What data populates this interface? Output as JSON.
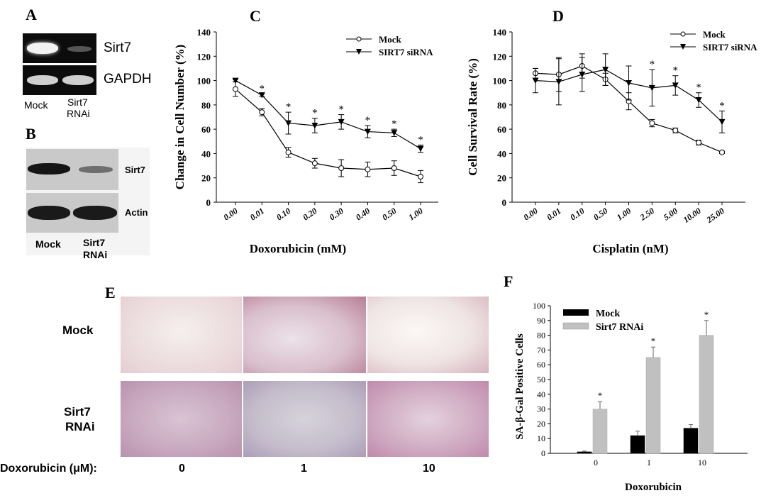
{
  "panels": {
    "a": {
      "letter": "A",
      "labels": [
        "Sirt7",
        "GAPDH"
      ],
      "lanes": [
        "Mock",
        "Sirt7",
        "RNAi"
      ]
    },
    "b": {
      "letter": "B",
      "labels": [
        "Sirt7",
        "Actin"
      ],
      "lanes": [
        "Mock",
        "Sirt7",
        "RNAi"
      ]
    },
    "e": {
      "letter": "E",
      "rows": [
        "Mock",
        "Sirt7",
        "RNAi"
      ],
      "xaxis_label": "Doxorubicin  (μM):",
      "cols": [
        "0",
        "1",
        "10"
      ]
    }
  },
  "chart_data": [
    {
      "id": "C",
      "type": "line",
      "letter": "C",
      "xlabel": "Doxorubicin (mM)",
      "ylabel": "Change in Cell Number (%)",
      "categories": [
        "0.00",
        "0.01",
        "0.10",
        "0.20",
        "0.30",
        "0.40",
        "0.50",
        "1.00"
      ],
      "ylim": [
        0,
        140
      ],
      "yticks": [
        "0",
        "20",
        "40",
        "60",
        "80",
        "100",
        "120",
        "140"
      ],
      "legend_position": "top-right",
      "series": [
        {
          "name": "Mock",
          "marker": "open-circle",
          "values": [
            93,
            74,
            41,
            32,
            28,
            27,
            28,
            21
          ],
          "errors": [
            6,
            3,
            4,
            4,
            7,
            6,
            6,
            5
          ]
        },
        {
          "name": "SIRT7 siRNA",
          "marker": "filled-triangle",
          "values": [
            100,
            88,
            65,
            63,
            66,
            58,
            57,
            44
          ],
          "errors": [
            1,
            1,
            9,
            6,
            6,
            5,
            3,
            3
          ]
        }
      ],
      "annotations": [
        "*",
        "*",
        "*",
        "*",
        "*",
        "*",
        "*"
      ],
      "annotation_index": [
        1,
        2,
        3,
        4,
        5,
        6,
        7
      ]
    },
    {
      "id": "D",
      "type": "line",
      "letter": "D",
      "xlabel": "Cisplatin (nM)",
      "ylabel": "Cell Survival Rate (%)",
      "categories": [
        "0.00",
        "0.01",
        "0.10",
        "0.50",
        "1.00",
        "2.50",
        "5.00",
        "10.00",
        "25.00"
      ],
      "ylim": [
        0,
        140
      ],
      "yticks": [
        "0",
        "20",
        "40",
        "60",
        "80",
        "100",
        "120",
        "140"
      ],
      "legend_position": "top-right",
      "series": [
        {
          "name": "Mock",
          "marker": "open-circle",
          "values": [
            106,
            105,
            112,
            101,
            83,
            65,
            59,
            49,
            41
          ],
          "errors": [
            4,
            14,
            10,
            5,
            7,
            3,
            2,
            2,
            1
          ]
        },
        {
          "name": "SIRT7 siRNA",
          "marker": "filled-triangle",
          "values": [
            100,
            99,
            105,
            109,
            98,
            94,
            96,
            84,
            66
          ],
          "errors": [
            10,
            19,
            14,
            13,
            14,
            15,
            8,
            6,
            9
          ]
        }
      ],
      "annotations": [
        "*",
        "*",
        "*",
        "*"
      ],
      "annotation_index": [
        5,
        6,
        7,
        8
      ]
    },
    {
      "id": "F",
      "type": "bar",
      "letter": "F",
      "xlabel": "Doxorubicin",
      "ylabel": "SA-β-Gal Positive Cells",
      "categories": [
        "0",
        "1",
        "10"
      ],
      "ylim": [
        0,
        100
      ],
      "yticks": [
        "0",
        "10",
        "20",
        "30",
        "40",
        "50",
        "60",
        "70",
        "80",
        "90",
        "100"
      ],
      "legend_position": "top-left",
      "series": [
        {
          "name": "Mock",
          "color": "#000000",
          "values": [
            1,
            12,
            17
          ],
          "errors": [
            0.5,
            3,
            2.5
          ]
        },
        {
          "name": "Sirt7 RNAi",
          "color": "#c0c0c0",
          "values": [
            30,
            65,
            80
          ],
          "errors": [
            5,
            7,
            10
          ]
        }
      ],
      "annotations": [
        "*",
        "*",
        "*"
      ]
    }
  ]
}
